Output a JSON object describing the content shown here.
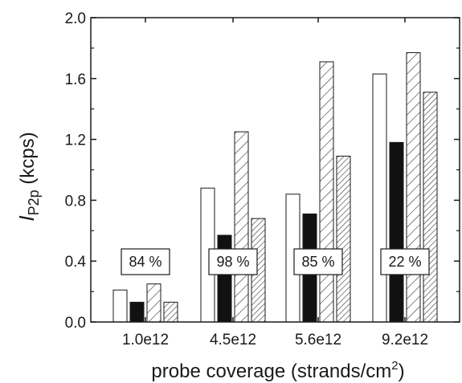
{
  "chart_data": {
    "type": "bar",
    "categories": [
      "1.0e12",
      "4.5e12",
      "5.6e12",
      "9.2e12"
    ],
    "series": [
      {
        "fill": "open",
        "values": [
          0.21,
          0.88,
          0.84,
          1.63
        ]
      },
      {
        "fill": "solid",
        "values": [
          0.13,
          0.57,
          0.71,
          1.18
        ]
      },
      {
        "fill": "wide-hatch",
        "values": [
          0.25,
          1.25,
          1.71,
          1.77
        ]
      },
      {
        "fill": "dense-hatch",
        "values": [
          0.13,
          0.68,
          1.09,
          1.51
        ]
      }
    ],
    "annotations": [
      "84 %",
      "98 %",
      "85 %",
      "22 %"
    ],
    "xlabel": {
      "text": "probe coverage (strands/cm",
      "superscript": "2",
      "suffix": ")"
    },
    "ylabel": {
      "italic": "I",
      "subscript": "P2p",
      "text": " (kcps)"
    },
    "ylim": [
      0.0,
      2.0
    ],
    "yticks": [
      "0.0",
      "0.4",
      "0.8",
      "1.2",
      "1.6",
      "2.0"
    ],
    "grid": false,
    "legend": "none",
    "colors": {
      "axis": "#1a1a1a",
      "solid_bar": "#111111",
      "background": "#ffffff"
    }
  }
}
